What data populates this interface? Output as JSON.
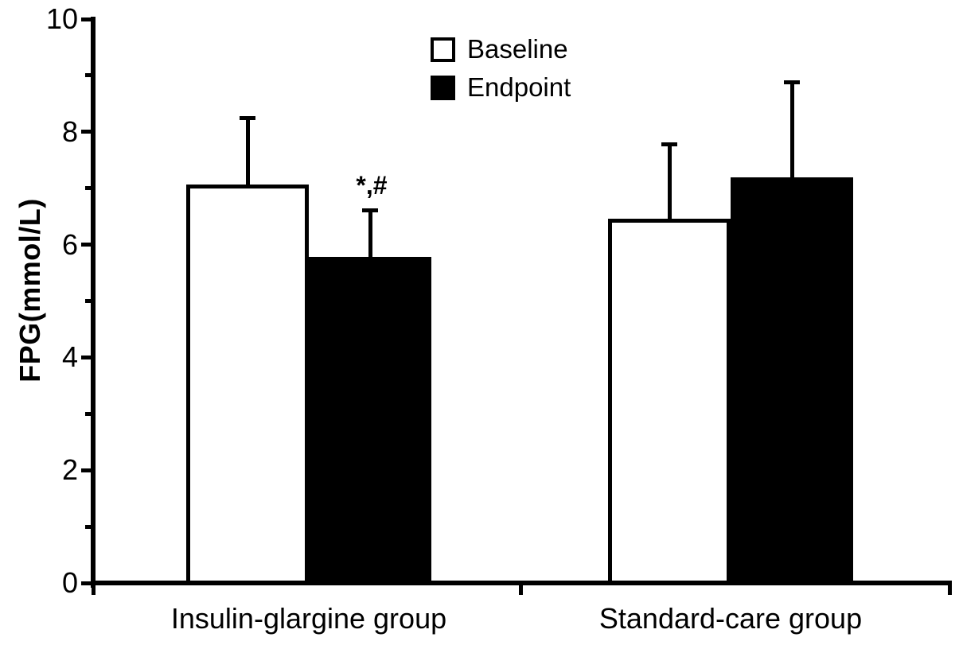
{
  "figure": {
    "background": "#ffffff",
    "ink": "#000000"
  },
  "chart_data": {
    "type": "bar",
    "title": "",
    "xlabel": "",
    "ylabel": "FPG(mmol/L)",
    "ylim": [
      0,
      10
    ],
    "yticks_major": [
      0,
      2,
      4,
      6,
      8,
      10
    ],
    "yticks_minor": [
      1,
      3,
      5,
      7,
      9
    ],
    "grid": false,
    "legend_position": "top-center",
    "error_bars": "sd-upper-only",
    "categories": [
      "Insulin-glargine group",
      "Standard-care group"
    ],
    "series": [
      {
        "name": "Baseline",
        "fill": "#ffffff",
        "values": [
          7.07,
          6.46
        ],
        "errors_up": [
          1.18,
          1.33
        ]
      },
      {
        "name": "Endpoint",
        "fill": "#000000",
        "values": [
          5.78,
          7.19
        ],
        "errors_up": [
          0.83,
          1.69
        ]
      }
    ],
    "annotations": [
      {
        "text": "*,#",
        "category_index": 0,
        "series_index": 1
      }
    ]
  }
}
